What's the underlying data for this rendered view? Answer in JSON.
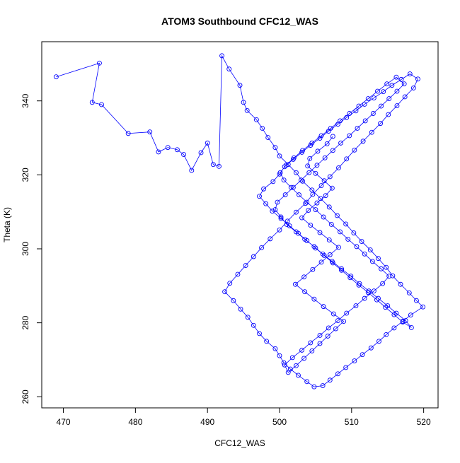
{
  "chart_data": {
    "type": "scatter",
    "title": "ATOM3 Southbound CFC12_WAS",
    "xlabel": "CFC12_WAS",
    "ylabel": "Theta (K)",
    "xlim": [
      467,
      522
    ],
    "ylim": [
      257,
      356
    ],
    "xticks": [
      470,
      480,
      490,
      500,
      510,
      520
    ],
    "yticks": [
      260,
      280,
      300,
      320,
      340
    ],
    "grid": false,
    "marker": "open-circle",
    "connect_points": true,
    "series_color": "#0000ff",
    "series": [
      {
        "x": [
          469,
          475,
          474,
          475.3,
          479,
          482,
          483.2,
          484.5,
          485.8,
          486.7,
          487.8,
          489.1,
          490,
          490.8,
          491.6,
          492,
          493,
          494.5,
          495,
          495.5,
          496.8,
          497.6,
          498.4,
          499.4,
          500,
          501.2,
          502.3,
          503.2,
          504.5,
          505.7,
          506.9,
          508,
          509.2,
          510.3,
          511.4,
          512.6,
          513.7,
          514.8,
          515.7,
          516.8,
          518,
          519,
          519.9,
          518.2,
          517.1,
          515.9,
          514.8,
          513.8,
          512.7,
          511.5,
          510.4,
          509.2,
          508.1,
          507,
          506,
          504.8,
          503.8,
          502.6,
          501.5,
          500.6,
          500,
          499.4,
          498.2,
          497.2,
          496.4,
          495.6,
          494.6,
          493.6,
          492.4,
          493.1,
          494.2,
          495.3,
          496.4,
          497.5,
          498.7,
          500,
          501.1,
          502.3,
          503.6,
          504.6,
          505.8,
          507,
          508.2,
          509.3,
          510.4,
          511.6,
          512.8,
          514,
          515.1,
          516.3,
          517.4,
          518.6,
          519.2,
          518.1,
          516.9,
          515.6,
          514.4,
          513.1,
          511.8,
          510.6,
          509.3,
          508.1,
          506.8,
          505.6,
          504.3,
          503.1,
          501.9,
          500.7,
          500,
          499.1,
          497.8,
          497.2,
          498.1,
          499,
          500.2,
          501.4,
          502.6,
          503.8,
          505,
          506.2,
          507.4,
          508.6,
          509.8,
          511,
          512.3,
          513.5,
          514.7,
          515.9,
          517.1,
          518.3,
          517.5,
          516.2,
          515,
          513.7,
          512.4,
          511.1,
          509.9,
          508.6,
          507.3,
          506,
          504.8,
          503.5,
          502.3,
          501,
          500.2,
          499.4,
          499.7,
          500.8,
          501.9,
          503,
          504.1,
          505.2,
          506.3,
          507.4,
          508.5,
          509.7,
          510.8,
          511.9,
          513,
          514.1,
          515.2,
          516.3,
          517.3,
          516.2,
          514.9,
          513.6,
          512.3,
          511,
          509.7,
          508.4,
          507.1,
          505.8,
          504.5,
          503.2,
          502,
          500.9,
          500.1,
          500.6,
          501.6,
          502.7,
          503.8,
          505,
          506.1,
          507.2,
          508.4,
          509.5,
          510.7,
          511.8,
          512.9,
          514.1,
          515.2,
          514.3,
          513.1,
          511.8,
          510.6,
          509.3,
          508.1,
          506.8,
          505.6,
          504.3,
          503.1,
          501.8,
          500.7,
          501.2,
          502.3,
          503.4,
          504.5,
          505.6,
          506.7,
          507.8,
          508.9,
          507.5,
          506.1,
          504.8,
          503.5,
          502.2,
          503.4,
          504.6,
          505.8,
          507,
          508.2,
          506.9,
          505.6,
          504.3,
          503.1,
          504,
          505.2,
          506.4,
          507.3,
          506.2,
          505,
          503.9,
          504.2,
          505.3,
          506.6,
          507.4
        ],
        "y": [
          346.5,
          350.2,
          339.6,
          339,
          331.2,
          331.6,
          326.2,
          327.4,
          326.8,
          325.5,
          321.2,
          326,
          328.6,
          322.8,
          322.3,
          352.2,
          348.6,
          344.2,
          339.6,
          337.4,
          334.9,
          332.6,
          330.1,
          327.4,
          325.1,
          322.8,
          320.6,
          318.3,
          315.9,
          313.6,
          311.3,
          309,
          306.7,
          304.3,
          302,
          299.7,
          297.4,
          295,
          292.7,
          290.4,
          288.1,
          286,
          284.3,
          282.1,
          280.4,
          278.6,
          276.8,
          275,
          273.2,
          271.4,
          269.7,
          267.9,
          266.2,
          264.5,
          263,
          262.7,
          264.1,
          265.8,
          267.5,
          269.2,
          271.1,
          273,
          275,
          277.1,
          279.3,
          281.5,
          283.7,
          286,
          288.4,
          290.7,
          293.1,
          295.5,
          297.9,
          300.3,
          302.7,
          305.1,
          307.5,
          309.9,
          312.3,
          314.7,
          317.1,
          319.5,
          321.9,
          324.3,
          326.7,
          329.1,
          331.5,
          333.9,
          336.3,
          338.7,
          341.1,
          343.5,
          345.9,
          347.3,
          345.8,
          344.2,
          342.5,
          340.8,
          339.1,
          337.3,
          335.5,
          333.7,
          331.8,
          329.9,
          328,
          326.1,
          324.2,
          322.2,
          320.2,
          318.2,
          316.2,
          314.2,
          312.2,
          310.2,
          308.2,
          306.2,
          304.2,
          302.2,
          300.2,
          298.2,
          296.2,
          294.2,
          292.2,
          290.2,
          288.2,
          286.2,
          284.2,
          282.2,
          280.2,
          278.7,
          280.6,
          282.6,
          284.6,
          286.6,
          288.6,
          290.6,
          292.6,
          294.6,
          296.6,
          298.6,
          300.6,
          302.6,
          304.6,
          306.6,
          308.6,
          310.6,
          312.6,
          314.6,
          316.6,
          318.6,
          320.6,
          322.6,
          324.6,
          326.6,
          328.6,
          330.6,
          332.6,
          334.6,
          336.6,
          338.6,
          340.6,
          342.6,
          344.6,
          346.4,
          344.6,
          342.6,
          340.6,
          338.6,
          336.6,
          334.6,
          332.6,
          330.6,
          328.6,
          326.6,
          324.6,
          322.6,
          320.6,
          318.6,
          316.6,
          314.6,
          312.6,
          310.6,
          308.6,
          306.6,
          304.6,
          302.6,
          300.6,
          298.6,
          296.6,
          294.6,
          292.6,
          290.6,
          288.6,
          286.6,
          284.6,
          282.6,
          280.6,
          278.6,
          276.6,
          274.6,
          272.6,
          270.6,
          268.6,
          266.6,
          268.4,
          270.4,
          272.4,
          274.4,
          276.4,
          278.4,
          280.4,
          282.4,
          284.4,
          286.4,
          288.4,
          290.4,
          292.4,
          294.4,
          296.4,
          298.4,
          300.4,
          302.4,
          304.4,
          306.4,
          308.4,
          310.4,
          312.4,
          314.4,
          316.4,
          318.4,
          320.4,
          322.4,
          324.4,
          326.4,
          328.4,
          330.4
        ]
      }
    ]
  }
}
